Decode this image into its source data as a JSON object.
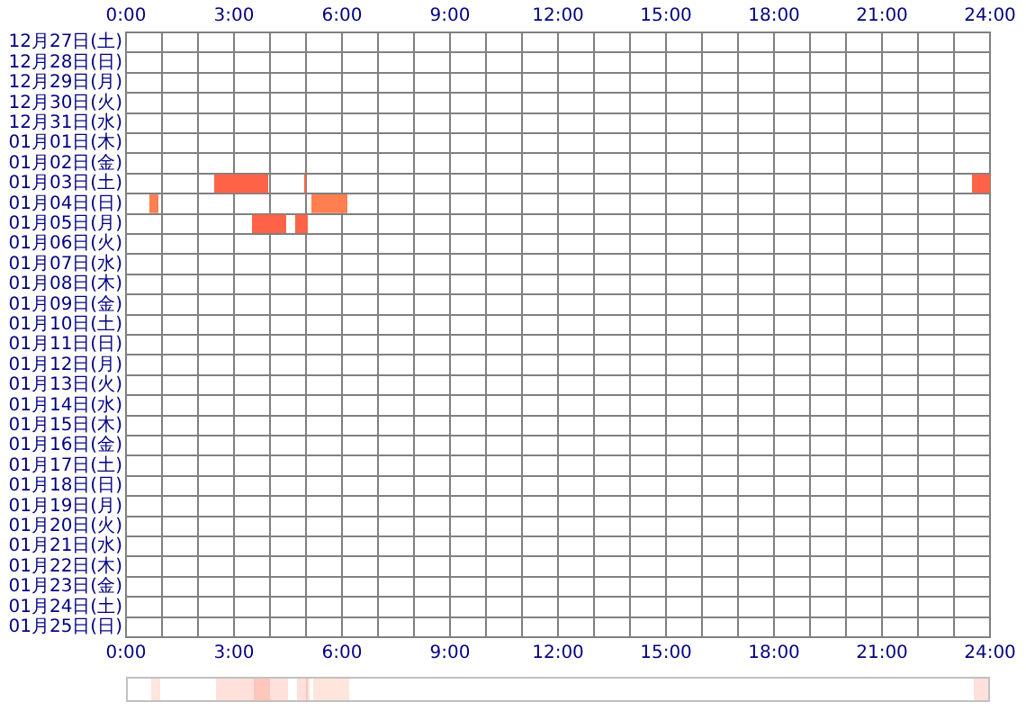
{
  "chart_data": {
    "type": "bar",
    "orientation": "horizontal",
    "categories": [
      "12月27日(土)",
      "12月28日(日)",
      "12月29日(月)",
      "12月30日(火)",
      "12月31日(水)",
      "01月01日(木)",
      "01月02日(金)",
      "01月03日(土)",
      "01月04日(日)",
      "01月05日(月)",
      "01月06日(火)",
      "01月07日(水)",
      "01月08日(木)",
      "01月09日(金)",
      "01月10日(土)",
      "01月11日(日)",
      "01月12日(月)",
      "01月13日(火)",
      "01月14日(水)",
      "01月15日(木)",
      "01月16日(金)",
      "01月17日(土)",
      "01月18日(日)",
      "01月19日(月)",
      "01月20日(火)",
      "01月21日(水)",
      "01月22日(木)",
      "01月23日(金)",
      "01月24日(土)",
      "01月25日(日)"
    ],
    "series": [
      {
        "colors": [
          null,
          null,
          null,
          null,
          null,
          null,
          null,
          "#ff6347",
          "#ff7f50",
          "#ff6347",
          null,
          null,
          null,
          null,
          null,
          null,
          null,
          null,
          null,
          null,
          null,
          null,
          null,
          null,
          null,
          null,
          null,
          null,
          null,
          null
        ],
        "base": [
          null,
          null,
          null,
          null,
          null,
          null,
          null,
          2.45,
          0.65,
          3.5,
          null,
          null,
          null,
          null,
          null,
          null,
          null,
          null,
          null,
          null,
          null,
          null,
          null,
          null,
          null,
          null,
          null,
          null,
          null,
          null
        ],
        "values": [
          null,
          null,
          null,
          null,
          null,
          null,
          null,
          1.5,
          0.25,
          0.95,
          null,
          null,
          null,
          null,
          null,
          null,
          null,
          null,
          null,
          null,
          null,
          null,
          null,
          null,
          null,
          null,
          null,
          null,
          null,
          null
        ]
      },
      {
        "colors": [
          null,
          null,
          null,
          null,
          null,
          null,
          null,
          "#ff6347",
          "#ff7f50",
          "#ff6347",
          null,
          null,
          null,
          null,
          null,
          null,
          null,
          null,
          null,
          null,
          null,
          null,
          null,
          null,
          null,
          null,
          null,
          null,
          null,
          null
        ],
        "base": [
          null,
          null,
          null,
          null,
          null,
          null,
          null,
          4.95,
          5.15,
          4.7,
          null,
          null,
          null,
          null,
          null,
          null,
          null,
          null,
          null,
          null,
          null,
          null,
          null,
          null,
          null,
          null,
          null,
          null,
          null,
          null
        ],
        "values": [
          null,
          null,
          null,
          null,
          null,
          null,
          null,
          0.05,
          1.0,
          0.35,
          null,
          null,
          null,
          null,
          null,
          null,
          null,
          null,
          null,
          null,
          null,
          null,
          null,
          null,
          null,
          null,
          null,
          null,
          null,
          null
        ]
      },
      {
        "colors": [
          null,
          null,
          null,
          null,
          null,
          null,
          null,
          "#ff6347",
          null,
          null,
          null,
          null,
          null,
          null,
          null,
          null,
          null,
          null,
          null,
          null,
          null,
          null,
          null,
          null,
          null,
          null,
          null,
          null,
          null,
          null
        ],
        "base": [
          null,
          null,
          null,
          null,
          null,
          null,
          null,
          23.5,
          null,
          null,
          null,
          null,
          null,
          null,
          null,
          null,
          null,
          null,
          null,
          null,
          null,
          null,
          null,
          null,
          null,
          null,
          null,
          null,
          null,
          null
        ],
        "values": [
          null,
          null,
          null,
          null,
          null,
          null,
          null,
          0.5,
          null,
          null,
          null,
          null,
          null,
          null,
          null,
          null,
          null,
          null,
          null,
          null,
          null,
          null,
          null,
          null,
          null,
          null,
          null,
          null,
          null,
          null
        ]
      }
    ],
    "xlim": [
      0,
      24
    ],
    "xticks": [
      {
        "value": 0,
        "label": "0:00"
      },
      {
        "value": 1,
        "label": null
      },
      {
        "value": 2,
        "label": null
      },
      {
        "value": 3,
        "label": "3:00"
      },
      {
        "value": 4,
        "label": null
      },
      {
        "value": 5,
        "label": null
      },
      {
        "value": 6,
        "label": "6:00"
      },
      {
        "value": 7,
        "label": null
      },
      {
        "value": 8,
        "label": null
      },
      {
        "value": 9,
        "label": "9:00"
      },
      {
        "value": 10,
        "label": null
      },
      {
        "value": 11,
        "label": null
      },
      {
        "value": 12,
        "label": "12:00"
      },
      {
        "value": 13,
        "label": null
      },
      {
        "value": 14,
        "label": null
      },
      {
        "value": 15,
        "label": "15:00"
      },
      {
        "value": 16,
        "label": null
      },
      {
        "value": 17,
        "label": null
      },
      {
        "value": 18,
        "label": "18:00"
      },
      {
        "value": 19,
        "label": null
      },
      {
        "value": 20,
        "label": null
      },
      {
        "value": 21,
        "label": "21:00"
      },
      {
        "value": 22,
        "label": null
      },
      {
        "value": 23,
        "label": null
      },
      {
        "value": 24,
        "label": "24:00"
      }
    ],
    "x2lim": [
      0,
      24
    ],
    "x2ticks": [
      {
        "value": 0,
        "label": "0:00"
      },
      {
        "value": 3,
        "label": "3:00"
      },
      {
        "value": 6,
        "label": "6:00"
      },
      {
        "value": 9,
        "label": "9:00"
      },
      {
        "value": 12,
        "label": "12:00"
      },
      {
        "value": 15,
        "label": "15:00"
      },
      {
        "value": 18,
        "label": "18:00"
      },
      {
        "value": 21,
        "label": "21:00"
      },
      {
        "value": 24,
        "label": "24:00"
      }
    ],
    "grid": true,
    "legend": false
  }
}
